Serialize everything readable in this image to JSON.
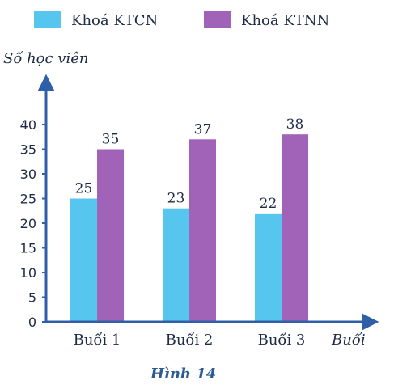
{
  "caption": "Hình 14",
  "colors": {
    "axis": "#2f5fa8",
    "text": "#1f2a44",
    "caption": "#2b5a96",
    "series_ktcn": "#57c6ef",
    "series_ktnn": "#a063b8"
  },
  "chart_data": {
    "type": "bar",
    "title": "",
    "xlabel": "Buổi",
    "ylabel": "Số học viên",
    "categories": [
      "Buổi 1",
      "Buổi 2",
      "Buổi 3"
    ],
    "series": [
      {
        "name": "Khoá KTCN",
        "values": [
          25,
          23,
          22
        ],
        "color": "#57c6ef"
      },
      {
        "name": "Khoá KTNN",
        "values": [
          35,
          37,
          38
        ],
        "color": "#a063b8"
      }
    ],
    "ylim": [
      0,
      40
    ],
    "yticks": [
      0,
      5,
      10,
      15,
      20,
      25,
      30,
      35,
      40
    ],
    "grid": false,
    "legend_position": "top"
  }
}
